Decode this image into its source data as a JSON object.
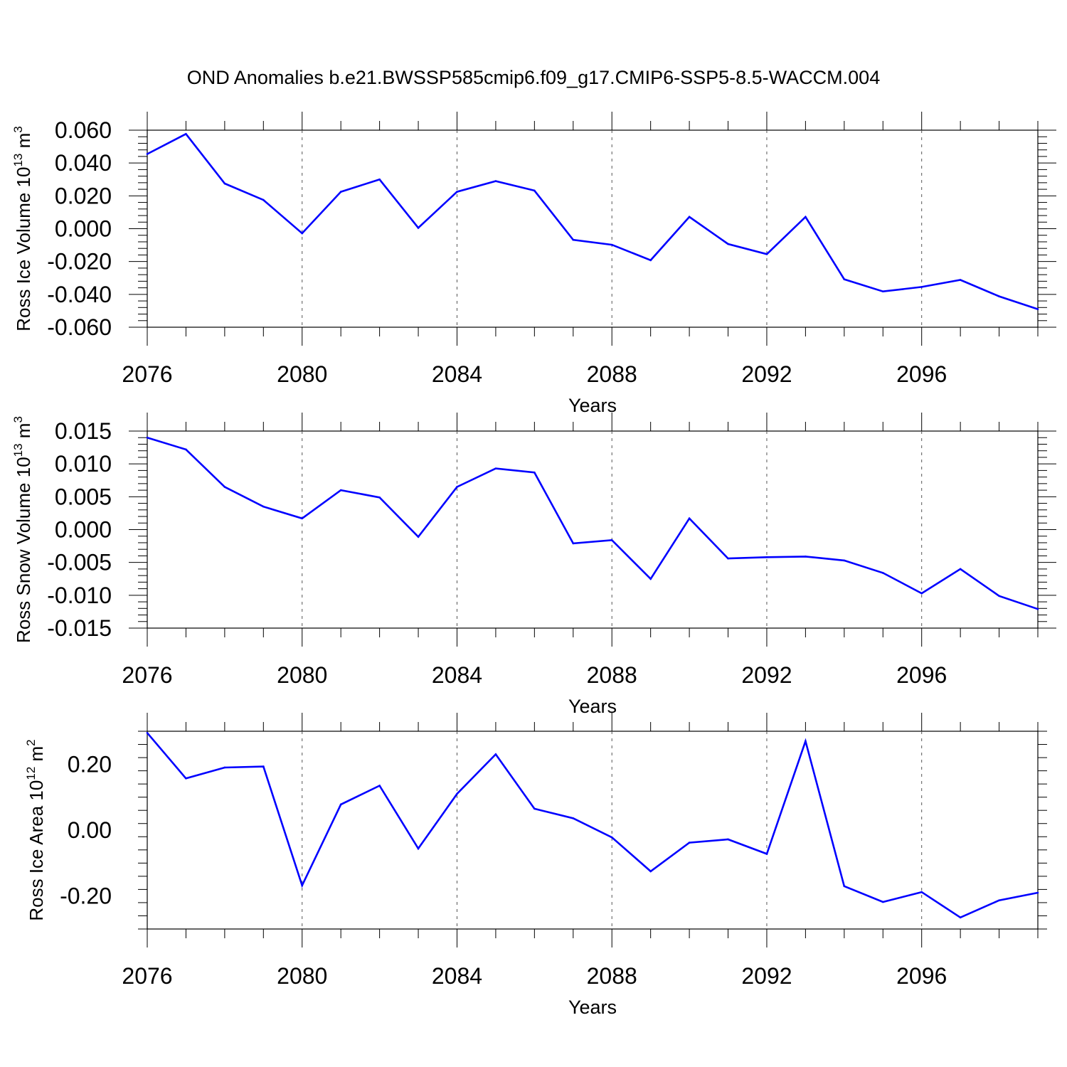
{
  "title": "OND Anomalies b.e21.BWSSP585cmip6.f09_g17.CMIP6-SSP5-8.5-WACCM.004",
  "chart_data": [
    {
      "type": "line",
      "xlabel": "Years",
      "ylabel_main": "Ross Ice Volume 10",
      "ylabel_exp": "13",
      "ylabel_unit": " m",
      "ylabel_unit_exp": "3",
      "xlim": [
        2076,
        2099
      ],
      "ylim": [
        -0.06,
        0.06
      ],
      "x_ticks": [
        2076,
        2080,
        2084,
        2088,
        2092,
        2096
      ],
      "y_ticks": [
        -0.06,
        -0.04,
        -0.02,
        0.0,
        0.02,
        0.04,
        0.06
      ],
      "y_tick_labels": [
        "-0.060",
        "-0.040",
        "-0.020",
        "0.000",
        "0.020",
        "0.040",
        "0.060"
      ],
      "grid_x": true,
      "line_color": "#0000ff",
      "x": [
        2076,
        2077,
        2078,
        2079,
        2080,
        2081,
        2082,
        2083,
        2084,
        2085,
        2086,
        2087,
        2088,
        2089,
        2090,
        2091,
        2092,
        2093,
        2094,
        2095,
        2096,
        2097,
        2098,
        2099
      ],
      "values": [
        0.0455,
        0.0577,
        0.0275,
        0.0175,
        -0.0028,
        0.0225,
        0.03,
        0.0005,
        0.0225,
        0.029,
        0.0232,
        -0.0068,
        -0.0098,
        -0.0192,
        0.0072,
        -0.0093,
        -0.0155,
        0.0072,
        -0.0308,
        -0.0382,
        -0.0355,
        -0.0312,
        -0.0412,
        -0.049
      ]
    },
    {
      "type": "line",
      "xlabel": "Years",
      "ylabel_main": "Ross Snow Volume 10",
      "ylabel_exp": "13",
      "ylabel_unit": " m",
      "ylabel_unit_exp": "3",
      "xlim": [
        2076,
        2099
      ],
      "ylim": [
        -0.015,
        0.015
      ],
      "x_ticks": [
        2076,
        2080,
        2084,
        2088,
        2092,
        2096
      ],
      "y_ticks": [
        -0.015,
        -0.01,
        -0.005,
        0.0,
        0.005,
        0.01,
        0.015
      ],
      "y_tick_labels": [
        "-0.015",
        "-0.010",
        "-0.005",
        "0.000",
        "0.005",
        "0.010",
        "0.015"
      ],
      "grid_x": true,
      "line_color": "#0000ff",
      "x": [
        2076,
        2077,
        2078,
        2079,
        2080,
        2081,
        2082,
        2083,
        2084,
        2085,
        2086,
        2087,
        2088,
        2089,
        2090,
        2091,
        2092,
        2093,
        2094,
        2095,
        2096,
        2097,
        2098,
        2099
      ],
      "values": [
        0.014,
        0.0122,
        0.0065,
        0.0035,
        0.0017,
        0.006,
        0.0049,
        -0.0011,
        0.0065,
        0.0093,
        0.0087,
        -0.0021,
        -0.0016,
        -0.0075,
        0.0017,
        -0.0044,
        -0.0042,
        -0.0041,
        -0.0047,
        -0.0066,
        -0.0097,
        -0.006,
        -0.0101,
        -0.0121
      ]
    },
    {
      "type": "line",
      "xlabel": "Years",
      "ylabel_main": "Ross Ice Area 10",
      "ylabel_exp": "12",
      "ylabel_unit": " m",
      "ylabel_unit_exp": "2",
      "xlim": [
        2076,
        2099
      ],
      "ylim": [
        -0.3,
        0.3
      ],
      "x_ticks": [
        2076,
        2080,
        2084,
        2088,
        2092,
        2096
      ],
      "y_ticks": [
        -0.2,
        0.0,
        0.2
      ],
      "y_tick_labels": [
        "-0.20",
        "0.00",
        "0.20"
      ],
      "grid_x": true,
      "line_color": "#0000ff",
      "x": [
        2076,
        2077,
        2078,
        2079,
        2080,
        2081,
        2082,
        2083,
        2084,
        2085,
        2086,
        2087,
        2088,
        2089,
        2090,
        2091,
        2092,
        2093,
        2094,
        2095,
        2096,
        2097,
        2098,
        2099
      ],
      "values": [
        0.295,
        0.157,
        0.19,
        0.193,
        -0.168,
        0.078,
        0.135,
        -0.056,
        0.11,
        0.23,
        0.065,
        0.036,
        -0.022,
        -0.125,
        -0.038,
        -0.028,
        -0.072,
        0.27,
        -0.17,
        -0.218,
        -0.188,
        -0.265,
        -0.213,
        -0.19
      ]
    }
  ]
}
